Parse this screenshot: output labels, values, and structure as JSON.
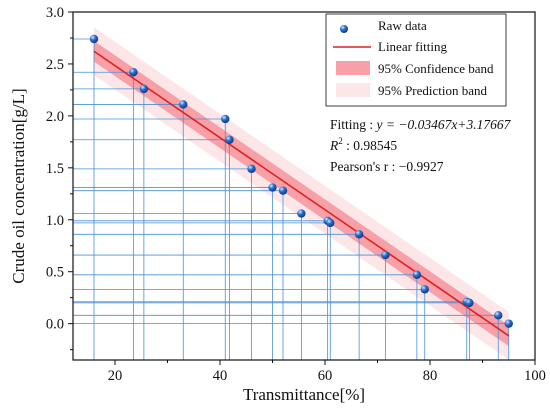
{
  "chart_data": {
    "type": "scatter",
    "title": "",
    "xlabel": "Transmittance[%]",
    "ylabel": "Crude oil concentration[g/L]",
    "xlim": [
      12,
      100
    ],
    "ylim": [
      -0.35,
      3.0
    ],
    "xticks": [
      20,
      40,
      60,
      80,
      100
    ],
    "yticks": [
      0.0,
      0.5,
      1.0,
      1.5,
      2.0,
      2.5,
      3.0
    ],
    "ytick_labels": [
      "0.0",
      "0.5",
      "1.0",
      "1.5",
      "2.0",
      "2.5",
      "3.0"
    ],
    "grid": false,
    "legend_position": "top-right",
    "series": [
      {
        "name": "Raw data",
        "kind": "scatter",
        "color": "#2b6fcc",
        "x": [
          16.0,
          23.5,
          25.5,
          33.0,
          41.0,
          41.8,
          46.0,
          50.0,
          52.0,
          55.5,
          60.5,
          61.0,
          66.5,
          71.5,
          77.5,
          79.0,
          87.0,
          87.5,
          93.0,
          95.0
        ],
        "y": [
          2.74,
          2.42,
          2.26,
          2.11,
          1.97,
          1.77,
          1.49,
          1.31,
          1.28,
          1.06,
          0.99,
          0.97,
          0.86,
          0.66,
          0.47,
          0.33,
          0.21,
          0.2,
          0.08,
          0.0
        ]
      },
      {
        "name": "Linear fitting",
        "kind": "line",
        "color": "#dd2222",
        "slope": -0.03467,
        "intercept": 3.17667,
        "x_range": [
          16,
          95
        ]
      },
      {
        "name": "95% Confidence band",
        "kind": "band",
        "color": "#f7a0a8",
        "half_width": 0.1
      },
      {
        "name": "95% Prediction band",
        "kind": "band",
        "color": "#fde6e8",
        "half_width": 0.23
      }
    ],
    "annotations": {
      "fitting_label": "Fitting : ",
      "fitting_equation": "y = −0.03467x+3.17667",
      "r2_label": "R",
      "r2_sup": "2",
      "r2_value": " : 0.98545",
      "pearson_label": "Pearson's r : −0.9927"
    },
    "reference_lines_color": "#4a90d9"
  }
}
